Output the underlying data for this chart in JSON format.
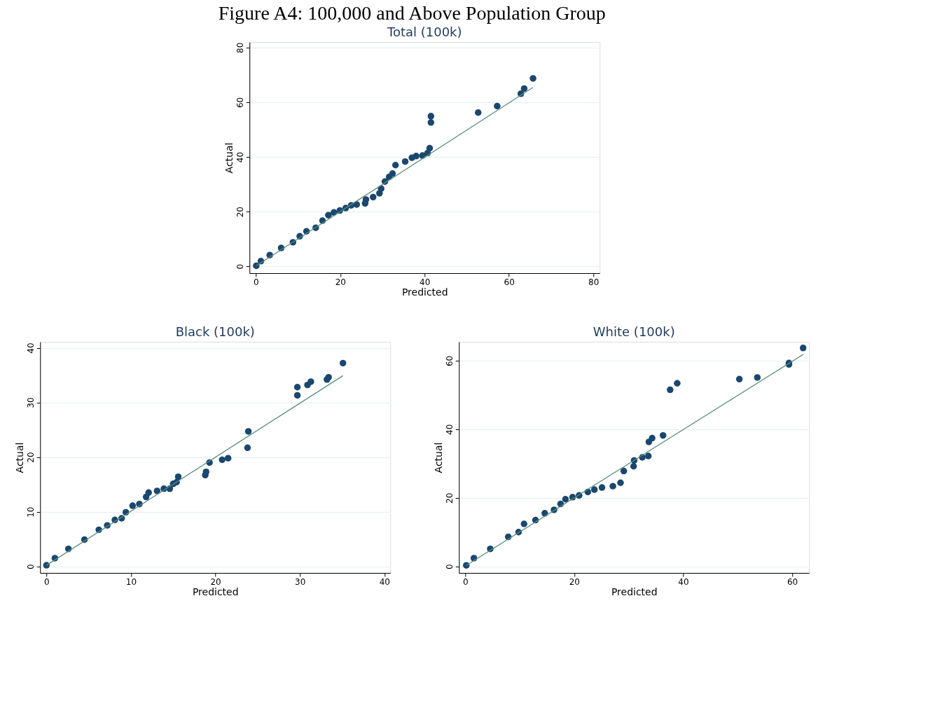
{
  "chart_data": [
    {
      "type": "other",
      "title": "Figure A4: 100,000 and Above Population Group"
    },
    {
      "type": "scatter",
      "title": "Total (100k)",
      "xlabel": "Predicted",
      "ylabel": "Actual",
      "xlim": [
        -1.5,
        81.5
      ],
      "ylim": [
        -2.5,
        82
      ],
      "xticks": [
        0,
        20,
        40,
        60,
        80
      ],
      "yticks": [
        0,
        20,
        40,
        60,
        80
      ],
      "grid": "y",
      "series": [
        {
          "type": "scatter",
          "marker": "circle",
          "color": "#1a476f",
          "x": [
            0.1,
            1.2,
            3.3,
            6.0,
            8.8,
            10.4,
            12.0,
            14.2,
            15.8,
            17.2,
            18.5,
            19.9,
            21.3,
            22.6,
            23.9,
            25.9,
            26.1,
            27.8,
            29.3,
            29.7,
            30.6,
            31.6,
            32.4,
            33.1,
            35.4,
            37.0,
            38.0,
            39.5,
            40.7,
            41.2,
            41.5,
            41.5,
            52.7,
            57.2,
            62.8,
            63.6,
            65.7
          ],
          "values": [
            0.2,
            1.9,
            4.1,
            6.7,
            8.8,
            11.0,
            12.8,
            14.1,
            16.7,
            18.7,
            19.7,
            20.4,
            21.3,
            22.3,
            22.6,
            23.0,
            24.4,
            25.3,
            26.7,
            28.4,
            31.0,
            32.7,
            33.9,
            37.0,
            38.3,
            39.7,
            40.3,
            40.5,
            41.4,
            43.2,
            52.6,
            54.9,
            56.2,
            58.6,
            63.1,
            65.0,
            68.7
          ]
        },
        {
          "type": "line",
          "line_style": "solid",
          "color": "#5a8f7b",
          "x": [
            0.1,
            65.7
          ],
          "values": [
            0.2,
            65.4
          ]
        }
      ]
    },
    {
      "type": "scatter",
      "title": "Black (100k)",
      "xlabel": "Predicted",
      "ylabel": "Actual",
      "xlim": [
        -0.75,
        40.7
      ],
      "ylim": [
        -1.2,
        41.1
      ],
      "xticks": [
        0,
        10,
        20,
        30,
        40
      ],
      "yticks": [
        0,
        10,
        20,
        30,
        40
      ],
      "grid": "y",
      "series": [
        {
          "type": "scatter",
          "marker": "circle",
          "color": "#1a476f",
          "x": [
            0,
            1.0,
            2.6,
            4.5,
            6.2,
            7.2,
            8.1,
            8.9,
            9.4,
            10.2,
            11.0,
            11.8,
            12.1,
            13.1,
            13.9,
            14.6,
            15.0,
            15.4,
            15.6,
            18.8,
            18.9,
            19.3,
            20.8,
            21.5,
            23.8,
            23.9,
            29.7,
            29.7,
            30.9,
            31.3,
            33.2,
            33.4,
            35.1
          ],
          "values": [
            0.2,
            1.5,
            3.2,
            4.9,
            6.7,
            7.5,
            8.5,
            8.8,
            9.9,
            11.1,
            11.4,
            12.7,
            13.5,
            13.8,
            14.2,
            14.2,
            15.1,
            15.4,
            16.4,
            16.7,
            17.3,
            19.0,
            19.5,
            19.8,
            21.7,
            24.7,
            31.3,
            32.8,
            33.2,
            33.8,
            34.2,
            34.6,
            37.2
          ]
        },
        {
          "type": "line",
          "line_style": "solid",
          "color": "#5a8f7b",
          "x": [
            0,
            35.1
          ],
          "values": [
            0.2,
            34.9
          ]
        }
      ]
    },
    {
      "type": "scatter",
      "title": "White (100k)",
      "xlabel": "Predicted",
      "ylabel": "Actual",
      "xlim": [
        -1.15,
        63.1
      ],
      "ylim": [
        -1.9,
        65.5
      ],
      "xticks": [
        0,
        20,
        40,
        60
      ],
      "yticks": [
        0,
        20,
        40,
        60
      ],
      "grid": "y",
      "series": [
        {
          "type": "scatter",
          "marker": "circle",
          "color": "#1a476f",
          "x": [
            0.2,
            1.6,
            4.6,
            7.9,
            9.8,
            10.8,
            12.9,
            14.6,
            16.3,
            17.5,
            18.4,
            19.7,
            20.9,
            22.5,
            23.7,
            25.1,
            27.1,
            28.5,
            29.1,
            30.9,
            31.0,
            32.5,
            33.6,
            33.7,
            34.3,
            36.3,
            37.6,
            38.9,
            50.3,
            53.6,
            59.4,
            59.4,
            62.0
          ],
          "values": [
            0.3,
            2.4,
            5.1,
            8.6,
            10.0,
            12.4,
            13.5,
            15.5,
            16.5,
            18.2,
            19.6,
            20.2,
            20.7,
            21.7,
            22.4,
            23.0,
            23.4,
            24.4,
            27.8,
            29.2,
            30.9,
            31.8,
            32.2,
            36.3,
            37.4,
            38.2,
            51.5,
            53.4,
            54.6,
            55.1,
            58.9,
            59.3,
            63.7
          ]
        },
        {
          "type": "line",
          "line_style": "solid",
          "color": "#5a8f7b",
          "x": [
            0.2,
            62.0
          ],
          "values": [
            0.3,
            61.8
          ]
        }
      ]
    }
  ]
}
